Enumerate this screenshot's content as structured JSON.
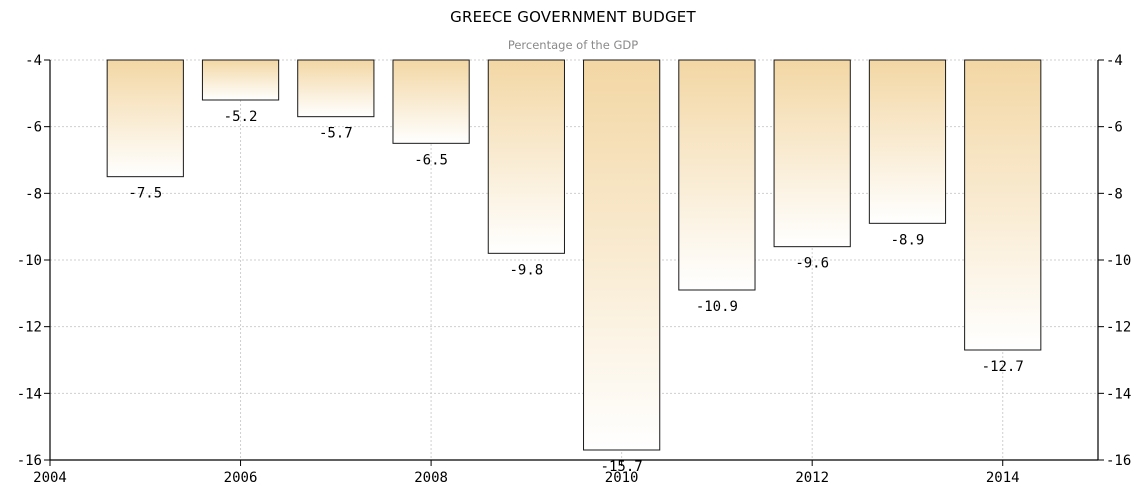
{
  "chart_data": {
    "type": "bar",
    "title": "GREECE GOVERNMENT BUDGET",
    "subtitle": "Percentage of the GDP",
    "xlabel": "",
    "ylabel": "",
    "x": [
      2005,
      2006,
      2007,
      2008,
      2009,
      2010,
      2011,
      2012,
      2013,
      2014
    ],
    "values": [
      -7.5,
      -5.2,
      -5.7,
      -6.5,
      -9.8,
      -15.7,
      -10.9,
      -9.6,
      -8.9,
      -12.7
    ],
    "value_labels": [
      "-7.5",
      "-5.2",
      "-5.7",
      "-6.5",
      "-9.8",
      "-15.7",
      "-10.9",
      "-9.6",
      "-8.9",
      "-12.7"
    ],
    "xlim": [
      2004,
      2015
    ],
    "ylim": [
      -16,
      -4
    ],
    "bars_hang_from": -4,
    "x_ticks": [
      2004,
      2006,
      2008,
      2010,
      2012,
      2014
    ],
    "x_tick_labels": [
      "2004",
      "2006",
      "2008",
      "2010",
      "2012",
      "2014"
    ],
    "y_ticks": [
      -4,
      -6,
      -8,
      -10,
      -12,
      -14,
      -16
    ],
    "y_tick_labels": [
      "-4",
      "-6",
      "-8",
      "-10",
      "-12",
      "-14",
      "-16"
    ],
    "y_axis_both_sides": true,
    "grid": true,
    "legend": "none",
    "colors": {
      "bar_top": "#f3d7a4",
      "bar_bottom": "#ffffff",
      "bar_border": "#1a1a1a",
      "grid": "#cfcfcf"
    }
  }
}
